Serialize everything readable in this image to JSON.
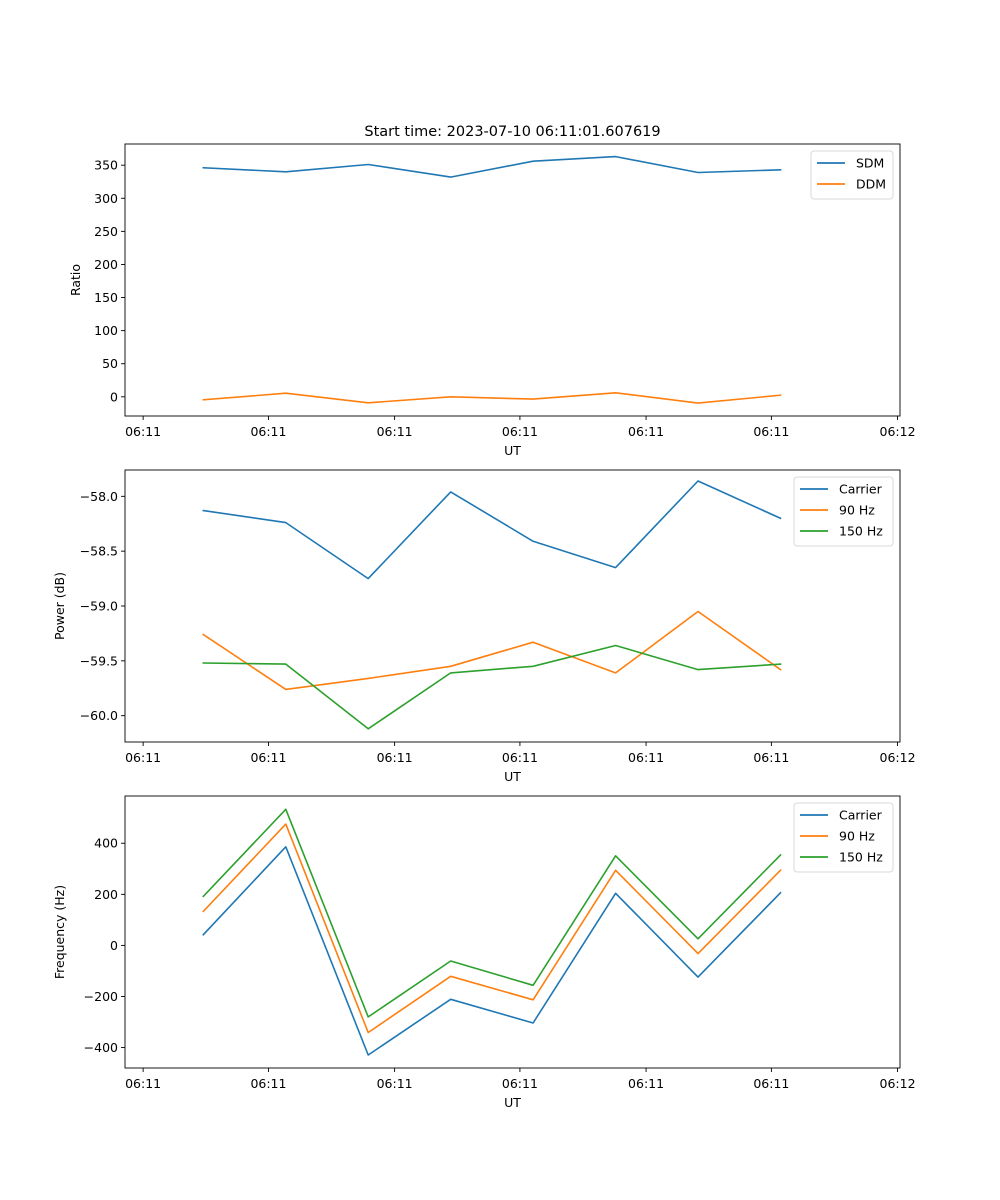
{
  "figure_title": "Start time: 2023-07-10 06:11:01.607619",
  "colors": {
    "blue": "#1f77b4",
    "orange": "#ff7f0e",
    "green": "#2ca02c"
  },
  "chart_data": [
    {
      "type": "line",
      "title": "Start time: 2023-07-10 06:11:01.607619",
      "xlabel": "UT",
      "ylabel": "Ratio",
      "x_index": [
        0,
        1,
        2,
        3,
        4,
        5,
        6,
        7
      ],
      "xtick_labels": [
        "06:11",
        "06:11",
        "06:11",
        "06:11",
        "06:11",
        "06:11",
        "06:12"
      ],
      "xtick_positions": [
        -0.73,
        0.79,
        2.32,
        3.84,
        5.37,
        6.89,
        8.42
      ],
      "xlim": [
        -0.95,
        8.45
      ],
      "ylim": [
        -29,
        382
      ],
      "yticks": [
        0,
        50,
        100,
        150,
        200,
        250,
        300,
        350
      ],
      "grid": false,
      "legend_position": "top-right",
      "series": [
        {
          "name": "SDM",
          "color": "#1f77b4",
          "values": [
            346,
            340,
            351,
            332,
            356,
            363,
            339,
            343
          ]
        },
        {
          "name": "DDM",
          "color": "#ff7f0e",
          "values": [
            -4.5,
            5.5,
            -9,
            0,
            -3.5,
            6,
            -9.5,
            2.5
          ]
        }
      ]
    },
    {
      "type": "line",
      "title": "",
      "xlabel": "UT",
      "ylabel": "Power (dB)",
      "x_index": [
        0,
        1,
        2,
        3,
        4,
        5,
        6,
        7
      ],
      "xtick_labels": [
        "06:11",
        "06:11",
        "06:11",
        "06:11",
        "06:11",
        "06:11",
        "06:12"
      ],
      "xtick_positions": [
        -0.73,
        0.79,
        2.32,
        3.84,
        5.37,
        6.89,
        8.42
      ],
      "xlim": [
        -0.95,
        8.45
      ],
      "ylim": [
        -60.24,
        -57.76
      ],
      "yticks": [
        -60.0,
        -59.5,
        -59.0,
        -58.5,
        -58.0
      ],
      "ytick_labels": [
        "−60.0",
        "−59.5",
        "−59.0",
        "−58.5",
        "−58.0"
      ],
      "grid": false,
      "legend_position": "top-right",
      "series": [
        {
          "name": "Carrier",
          "color": "#1f77b4",
          "values": [
            -58.13,
            -58.24,
            -58.75,
            -57.96,
            -58.41,
            -58.65,
            -57.86,
            -58.2
          ]
        },
        {
          "name": "90 Hz",
          "color": "#ff7f0e",
          "values": [
            -59.26,
            -59.76,
            -59.66,
            -59.55,
            -59.33,
            -59.61,
            -59.05,
            -59.58
          ]
        },
        {
          "name": "150 Hz",
          "color": "#2ca02c",
          "values": [
            -59.52,
            -59.53,
            -60.12,
            -59.61,
            -59.55,
            -59.36,
            -59.58,
            -59.53
          ]
        }
      ]
    },
    {
      "type": "line",
      "title": "",
      "xlabel": "UT",
      "ylabel": "Frequency (Hz)",
      "x_index": [
        0,
        1,
        2,
        3,
        4,
        5,
        6,
        7
      ],
      "xtick_labels": [
        "06:11",
        "06:11",
        "06:11",
        "06:11",
        "06:11",
        "06:11",
        "06:12"
      ],
      "xtick_positions": [
        -0.73,
        0.79,
        2.32,
        3.84,
        5.37,
        6.89,
        8.42
      ],
      "xlim": [
        -0.95,
        8.45
      ],
      "ylim": [
        -480,
        585
      ],
      "yticks": [
        -400,
        -200,
        0,
        200,
        400
      ],
      "ytick_labels": [
        "−400",
        "−200",
        "0",
        "200",
        "400"
      ],
      "grid": false,
      "legend_position": "top-right",
      "series": [
        {
          "name": "Carrier",
          "color": "#1f77b4",
          "values": [
            42,
            386,
            -429,
            -211,
            -304,
            204,
            -124,
            206
          ]
        },
        {
          "name": "90 Hz",
          "color": "#ff7f0e",
          "values": [
            133,
            475,
            -341,
            -121,
            -213,
            294,
            -32,
            294
          ]
        },
        {
          "name": "150 Hz",
          "color": "#2ca02c",
          "values": [
            192,
            533,
            -280,
            -61,
            -156,
            351,
            26,
            354
          ]
        }
      ]
    }
  ]
}
